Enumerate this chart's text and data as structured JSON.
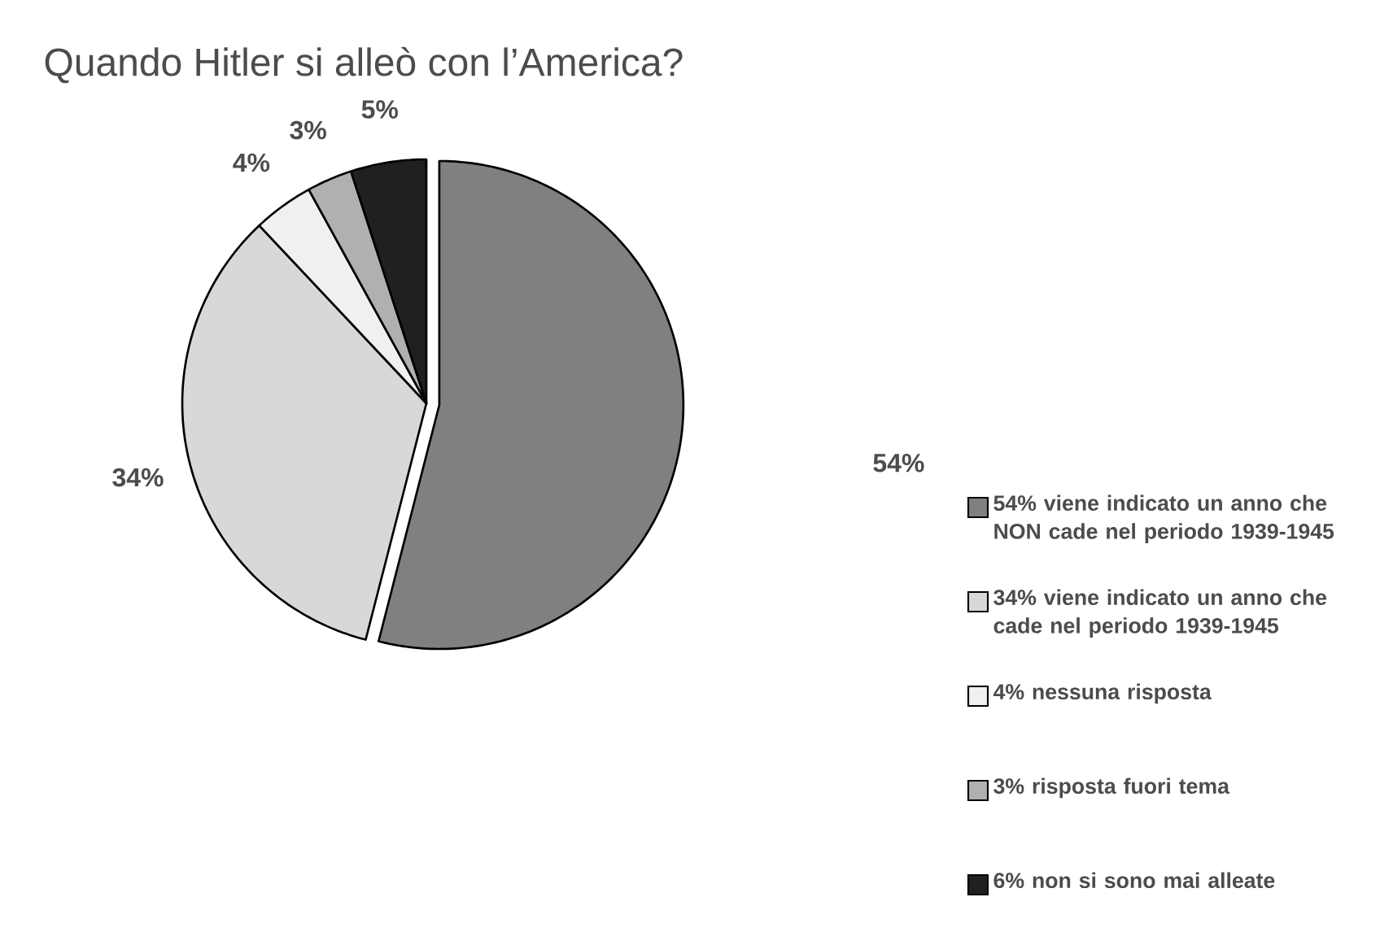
{
  "chart_data": {
    "type": "pie",
    "title": "Quando Hitler si alleò con l’America?",
    "categories": [
      "54% viene indicato un anno che NON cade nel periodo 1939-1945",
      "34% viene indicato un anno che cade nel periodo 1939-1945",
      "4% nessuna risposta",
      "3% risposta fuori tema",
      "6% non si sono mai alleate"
    ],
    "values": [
      54,
      34,
      4,
      3,
      5
    ],
    "value_labels": [
      "54%",
      "34%",
      "4%",
      "3%",
      "5%"
    ],
    "colors": [
      "#808080",
      "#d8d8d8",
      "#f0f0f0",
      "#b0b0b0",
      "#202020"
    ],
    "legend": "bottom right"
  }
}
